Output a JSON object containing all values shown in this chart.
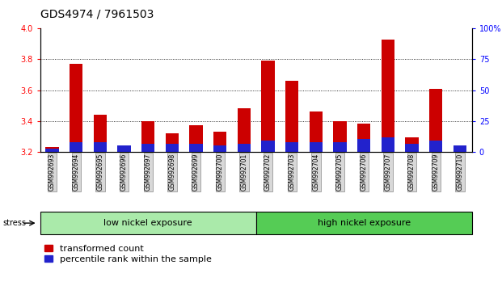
{
  "title": "GDS4974 / 7961503",
  "categories": [
    "GSM992693",
    "GSM992694",
    "GSM992695",
    "GSM992696",
    "GSM992697",
    "GSM992698",
    "GSM992699",
    "GSM992700",
    "GSM992701",
    "GSM992702",
    "GSM992703",
    "GSM992704",
    "GSM992705",
    "GSM992706",
    "GSM992707",
    "GSM992708",
    "GSM992709",
    "GSM992710"
  ],
  "red_values": [
    3.23,
    3.77,
    3.44,
    3.23,
    3.4,
    3.32,
    3.37,
    3.33,
    3.48,
    3.79,
    3.66,
    3.46,
    3.4,
    3.38,
    3.93,
    3.29,
    3.61,
    3.22
  ],
  "blue_values": [
    3.22,
    3.26,
    3.26,
    3.24,
    3.25,
    3.25,
    3.25,
    3.24,
    3.25,
    3.27,
    3.26,
    3.26,
    3.26,
    3.28,
    3.29,
    3.25,
    3.27,
    3.24
  ],
  "base": 3.2,
  "ylim_left": [
    3.2,
    4.0
  ],
  "ylim_right": [
    0,
    100
  ],
  "yticks_left": [
    3.2,
    3.4,
    3.6,
    3.8,
    4.0
  ],
  "yticks_right": [
    0,
    25,
    50,
    75,
    100
  ],
  "ytick_right_labels": [
    "0",
    "25",
    "50",
    "75",
    "100%"
  ],
  "grid_lines": [
    3.4,
    3.6,
    3.8
  ],
  "low_nickel_count": 9,
  "high_nickel_count": 9,
  "bar_width": 0.55,
  "red_color": "#cc0000",
  "blue_color": "#2222cc",
  "legend_red": "transformed count",
  "legend_blue": "percentile rank within the sample",
  "group_label_low": "low nickel exposure",
  "group_label_high": "high nickel exposure",
  "stress_label": "stress",
  "title_fontsize": 10,
  "tick_fontsize": 7,
  "label_fontsize": 5.5,
  "group_label_fontsize": 8,
  "legend_fontsize": 8,
  "low_bg_color": "#aaeaaa",
  "high_bg_color": "#55cc55",
  "xticklabel_bg": "#d8d8d8"
}
